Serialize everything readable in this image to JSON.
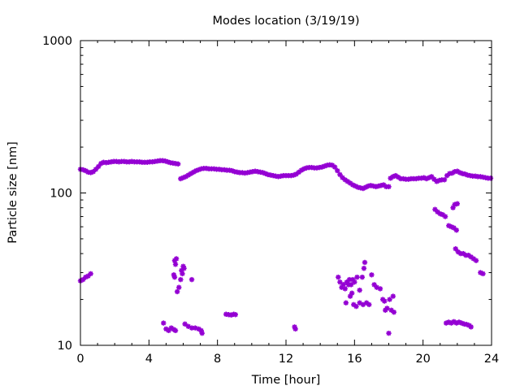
{
  "chart_data": {
    "type": "scatter",
    "title": "Modes location (3/19/19)",
    "xlabel": "Time [hour]",
    "ylabel": "Particle size [nm]",
    "xlim": [
      0,
      24
    ],
    "ylim": [
      10,
      1000
    ],
    "yscale": "log",
    "xticks": [
      "0",
      "4",
      "8",
      "12",
      "16",
      "20",
      "24"
    ],
    "yticks": [
      "10",
      "100",
      "1000"
    ],
    "grid": false,
    "legend": "none",
    "marker_color": "#9400d3",
    "series": [
      {
        "values": [
          [
            0.0,
            143
          ],
          [
            0.15,
            142
          ],
          [
            0.3,
            140
          ],
          [
            0.45,
            137
          ],
          [
            0.6,
            136
          ],
          [
            0.75,
            138
          ],
          [
            0.9,
            143
          ],
          [
            1.05,
            149
          ],
          [
            1.2,
            156
          ],
          [
            1.35,
            159
          ],
          [
            1.5,
            158
          ],
          [
            1.65,
            159
          ],
          [
            1.8,
            160
          ],
          [
            1.95,
            161
          ],
          [
            2.1,
            161
          ],
          [
            2.25,
            160
          ],
          [
            2.4,
            161
          ],
          [
            2.55,
            161
          ],
          [
            2.7,
            160
          ],
          [
            2.85,
            160
          ],
          [
            3.0,
            161
          ],
          [
            3.15,
            160
          ],
          [
            3.3,
            160
          ],
          [
            3.45,
            160
          ],
          [
            3.6,
            159
          ],
          [
            3.75,
            159
          ],
          [
            3.9,
            159
          ],
          [
            4.05,
            160
          ],
          [
            4.2,
            160
          ],
          [
            4.35,
            161
          ],
          [
            4.5,
            162
          ],
          [
            4.65,
            163
          ],
          [
            4.8,
            163
          ],
          [
            4.95,
            162
          ],
          [
            5.1,
            160
          ],
          [
            5.25,
            158
          ],
          [
            5.4,
            157
          ],
          [
            5.55,
            156
          ],
          [
            5.7,
            155
          ],
          [
            5.85,
            124
          ],
          [
            6.0,
            126
          ],
          [
            6.15,
            128
          ],
          [
            6.3,
            131
          ],
          [
            6.45,
            134
          ],
          [
            6.6,
            137
          ],
          [
            6.75,
            140
          ],
          [
            6.9,
            142
          ],
          [
            7.05,
            144
          ],
          [
            7.2,
            145
          ],
          [
            7.35,
            145
          ],
          [
            7.5,
            144
          ],
          [
            7.65,
            144
          ],
          [
            7.8,
            144
          ],
          [
            7.95,
            143
          ],
          [
            8.1,
            143
          ],
          [
            8.25,
            142
          ],
          [
            8.4,
            142
          ],
          [
            8.55,
            141
          ],
          [
            8.7,
            141
          ],
          [
            8.85,
            140
          ],
          [
            9.0,
            138
          ],
          [
            9.15,
            137
          ],
          [
            9.3,
            136
          ],
          [
            9.45,
            136
          ],
          [
            9.6,
            135
          ],
          [
            9.75,
            136
          ],
          [
            9.9,
            137
          ],
          [
            10.05,
            138
          ],
          [
            10.2,
            139
          ],
          [
            10.35,
            138
          ],
          [
            10.5,
            137
          ],
          [
            10.65,
            136
          ],
          [
            10.8,
            134
          ],
          [
            10.95,
            132
          ],
          [
            11.1,
            131
          ],
          [
            11.25,
            130
          ],
          [
            11.4,
            129
          ],
          [
            11.55,
            128
          ],
          [
            11.7,
            129
          ],
          [
            11.85,
            130
          ],
          [
            12.0,
            130
          ],
          [
            12.15,
            130
          ],
          [
            12.3,
            130
          ],
          [
            12.45,
            131
          ],
          [
            12.6,
            133
          ],
          [
            12.75,
            137
          ],
          [
            12.9,
            141
          ],
          [
            13.05,
            144
          ],
          [
            13.2,
            146
          ],
          [
            13.35,
            147
          ],
          [
            13.5,
            147
          ],
          [
            13.65,
            146
          ],
          [
            13.8,
            146
          ],
          [
            13.95,
            147
          ],
          [
            14.1,
            148
          ],
          [
            14.25,
            150
          ],
          [
            14.4,
            152
          ],
          [
            14.55,
            153
          ],
          [
            14.7,
            152
          ],
          [
            14.85,
            148
          ],
          [
            15.0,
            140
          ],
          [
            15.15,
            132
          ],
          [
            15.3,
            126
          ],
          [
            15.45,
            122
          ],
          [
            15.6,
            119
          ],
          [
            15.75,
            116
          ],
          [
            15.9,
            113
          ],
          [
            16.05,
            111
          ],
          [
            16.2,
            109
          ],
          [
            16.35,
            108
          ],
          [
            16.5,
            107
          ],
          [
            16.65,
            109
          ],
          [
            16.8,
            111
          ],
          [
            16.95,
            112
          ],
          [
            17.1,
            111
          ],
          [
            17.25,
            110
          ],
          [
            17.4,
            111
          ],
          [
            17.55,
            112
          ],
          [
            17.7,
            113
          ],
          [
            17.85,
            110
          ],
          [
            18.0,
            110
          ],
          [
            18.1,
            125
          ],
          [
            18.25,
            128
          ],
          [
            18.4,
            130
          ],
          [
            18.55,
            127
          ],
          [
            18.7,
            124
          ],
          [
            18.85,
            124
          ],
          [
            19.0,
            123
          ],
          [
            19.15,
            123
          ],
          [
            19.3,
            124
          ],
          [
            19.45,
            124
          ],
          [
            19.6,
            124
          ],
          [
            19.75,
            125
          ],
          [
            19.9,
            125
          ],
          [
            20.05,
            126
          ],
          [
            20.2,
            124
          ],
          [
            20.35,
            126
          ],
          [
            20.5,
            128
          ],
          [
            20.65,
            123
          ],
          [
            20.8,
            119
          ],
          [
            20.95,
            121
          ],
          [
            21.1,
            122
          ],
          [
            21.25,
            122
          ],
          [
            21.4,
            130
          ],
          [
            21.55,
            134
          ],
          [
            21.7,
            135
          ],
          [
            21.85,
            138
          ],
          [
            22.0,
            139
          ],
          [
            22.15,
            136
          ],
          [
            22.3,
            134
          ],
          [
            22.45,
            133
          ],
          [
            22.6,
            131
          ],
          [
            22.75,
            130
          ],
          [
            22.9,
            129
          ],
          [
            23.05,
            129
          ],
          [
            23.2,
            128
          ],
          [
            23.35,
            128
          ],
          [
            23.5,
            127
          ],
          [
            23.65,
            126
          ],
          [
            23.8,
            125
          ],
          [
            23.95,
            125
          ],
          [
            0.0,
            26.5
          ],
          [
            0.15,
            27
          ],
          [
            0.3,
            28
          ],
          [
            0.45,
            28.5
          ],
          [
            0.6,
            29.5
          ],
          [
            4.85,
            14
          ],
          [
            5.0,
            12.8
          ],
          [
            5.15,
            12.5
          ],
          [
            5.3,
            13
          ],
          [
            5.45,
            12.7
          ],
          [
            5.55,
            12.5
          ],
          [
            5.5,
            36
          ],
          [
            5.55,
            34
          ],
          [
            5.6,
            37
          ],
          [
            5.45,
            29
          ],
          [
            5.5,
            28
          ],
          [
            5.65,
            22.5
          ],
          [
            5.75,
            24
          ],
          [
            5.85,
            27
          ],
          [
            5.9,
            31
          ],
          [
            6.0,
            33
          ],
          [
            6.05,
            32
          ],
          [
            5.95,
            29.5
          ],
          [
            6.5,
            27
          ],
          [
            6.1,
            13.8
          ],
          [
            6.3,
            13.3
          ],
          [
            6.5,
            13
          ],
          [
            6.7,
            13
          ],
          [
            6.9,
            12.8
          ],
          [
            7.05,
            12.5
          ],
          [
            7.1,
            12
          ],
          [
            8.5,
            16
          ],
          [
            8.65,
            15.9
          ],
          [
            8.8,
            15.8
          ],
          [
            8.95,
            16
          ],
          [
            9.05,
            15.9
          ],
          [
            12.5,
            13.2
          ],
          [
            12.55,
            12.8
          ],
          [
            15.05,
            28
          ],
          [
            15.15,
            26
          ],
          [
            15.25,
            24
          ],
          [
            15.35,
            25
          ],
          [
            15.45,
            23.5
          ],
          [
            15.55,
            26
          ],
          [
            15.65,
            25
          ],
          [
            15.7,
            27
          ],
          [
            15.8,
            25
          ],
          [
            15.9,
            27
          ],
          [
            16.0,
            26
          ],
          [
            16.15,
            28
          ],
          [
            16.3,
            23
          ],
          [
            16.45,
            28
          ],
          [
            16.55,
            32
          ],
          [
            16.6,
            35
          ],
          [
            15.5,
            19
          ],
          [
            15.75,
            21
          ],
          [
            15.85,
            22
          ],
          [
            15.95,
            18.5
          ],
          [
            16.1,
            18
          ],
          [
            16.3,
            19
          ],
          [
            16.5,
            18.5
          ],
          [
            16.7,
            19
          ],
          [
            16.85,
            18.5
          ],
          [
            17.0,
            29
          ],
          [
            17.15,
            25
          ],
          [
            17.3,
            24
          ],
          [
            17.5,
            23.5
          ],
          [
            17.65,
            20
          ],
          [
            17.75,
            19.5
          ],
          [
            17.8,
            17
          ],
          [
            17.9,
            17.5
          ],
          [
            18.05,
            20
          ],
          [
            18.15,
            17
          ],
          [
            18.25,
            21
          ],
          [
            18.0,
            12
          ],
          [
            18.3,
            16.5
          ],
          [
            20.7,
            78
          ],
          [
            20.85,
            75
          ],
          [
            21.0,
            73
          ],
          [
            21.15,
            72
          ],
          [
            21.3,
            70
          ],
          [
            21.5,
            61
          ],
          [
            21.65,
            60
          ],
          [
            21.8,
            59
          ],
          [
            21.95,
            57
          ],
          [
            21.85,
            84
          ],
          [
            22.0,
            85
          ],
          [
            21.75,
            80
          ],
          [
            21.9,
            43
          ],
          [
            22.05,
            41
          ],
          [
            22.2,
            40
          ],
          [
            22.35,
            40
          ],
          [
            22.5,
            39
          ],
          [
            22.65,
            39
          ],
          [
            22.8,
            38
          ],
          [
            22.95,
            37
          ],
          [
            23.1,
            36
          ],
          [
            23.35,
            30
          ],
          [
            23.5,
            29.5
          ],
          [
            21.35,
            14
          ],
          [
            21.5,
            14.2
          ],
          [
            21.65,
            14
          ],
          [
            21.8,
            14.3
          ],
          [
            21.95,
            14
          ],
          [
            22.1,
            14.2
          ],
          [
            22.25,
            14
          ],
          [
            22.4,
            13.8
          ],
          [
            22.55,
            13.7
          ],
          [
            22.7,
            13.5
          ],
          [
            22.8,
            13.2
          ]
        ]
      }
    ]
  }
}
